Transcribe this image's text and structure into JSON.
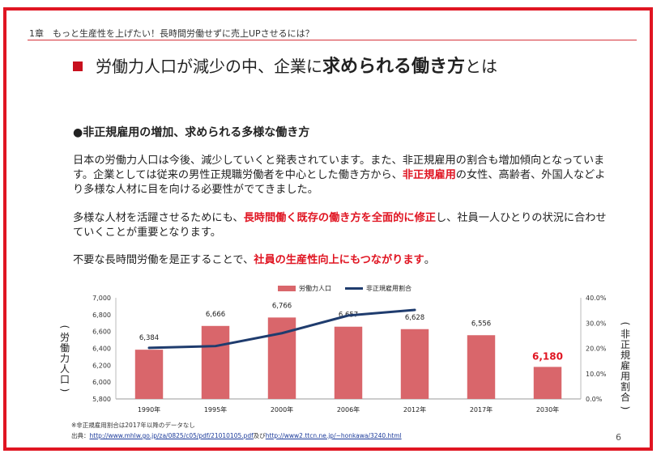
{
  "header": {
    "chapter": "1章　もっと生産性を上げたい！長時間労働せずに売上UPさせるには？"
  },
  "title": {
    "pre": "労働力人口が減少の中、企業に",
    "bold": "求められる働き方",
    "post": "とは"
  },
  "section": {
    "heading": "●非正規雇用の増加、求められる多様な働き方"
  },
  "paragraphs": {
    "p1_a": "日本の労働力人口は今後、減少していくと発表されています。また、非正規雇用の割合も増加傾向となっています。企業としては従来の男性正規職労働者を中心とした働き方から、",
    "p1_hl": "非正規雇用",
    "p1_b": "の女性、高齢者、外国人などより多様な人材に目を向ける必要性がでてきました。",
    "p2_a": "多様な人材を活躍させるためにも、",
    "p2_hl": "長時間働く既存の働き方を全面的に修正",
    "p2_b": "し、社員一人ひとりの状況に合わせていくことが重要となります。",
    "p3_a": "不要な長時間労働を是正することで、",
    "p3_hl": "社員の生産性向上にもつながります",
    "p3_b": "。"
  },
  "chart_data": {
    "type": "bar",
    "categories": [
      "1990年",
      "1995年",
      "2000年",
      "2006年",
      "2012年",
      "2017年",
      "2030年"
    ],
    "series": [
      {
        "name": "労働力人口",
        "type": "bar",
        "axis": "left",
        "values": [
          6384,
          6666,
          6766,
          6657,
          6628,
          6556,
          6180
        ],
        "labels": [
          "6,384",
          "6,666",
          "6,766",
          "6,657",
          "6,628",
          "6,556",
          "6,180"
        ]
      },
      {
        "name": "非正規雇用割合",
        "type": "line",
        "axis": "right",
        "values": [
          20.2,
          20.9,
          26.0,
          33.0,
          35.2,
          null,
          null
        ]
      }
    ],
    "ylabel": "(労働力人口)",
    "y2label": "(非正規雇用割合)",
    "ylim": [
      5800,
      7000
    ],
    "y2lim": [
      0,
      40
    ],
    "yticks": [
      "5,800",
      "6,000",
      "6,200",
      "6,400",
      "6,600",
      "6,800",
      "7,000"
    ],
    "y2ticks": [
      "0.0%",
      "10.0%",
      "20.0%",
      "30.0%",
      "40.0%"
    ],
    "legend": "top-center",
    "highlight_index": 6,
    "colors": {
      "bar": "#d9666b",
      "line": "#1f3c6e",
      "highlight": "#e01522"
    }
  },
  "notes": {
    "footnote": "※非正規雇用割合は2017年以降のデータなし",
    "source_prefix": "出典：",
    "source_link1": "http://www.mhlw.go.jp/za/0825/c05/pdf/21010105.pdf",
    "source_mid": "及び",
    "source_link2": "http://www2.ttcn.ne.jp/~honkawa/3240.html"
  },
  "page": {
    "number": "6"
  }
}
